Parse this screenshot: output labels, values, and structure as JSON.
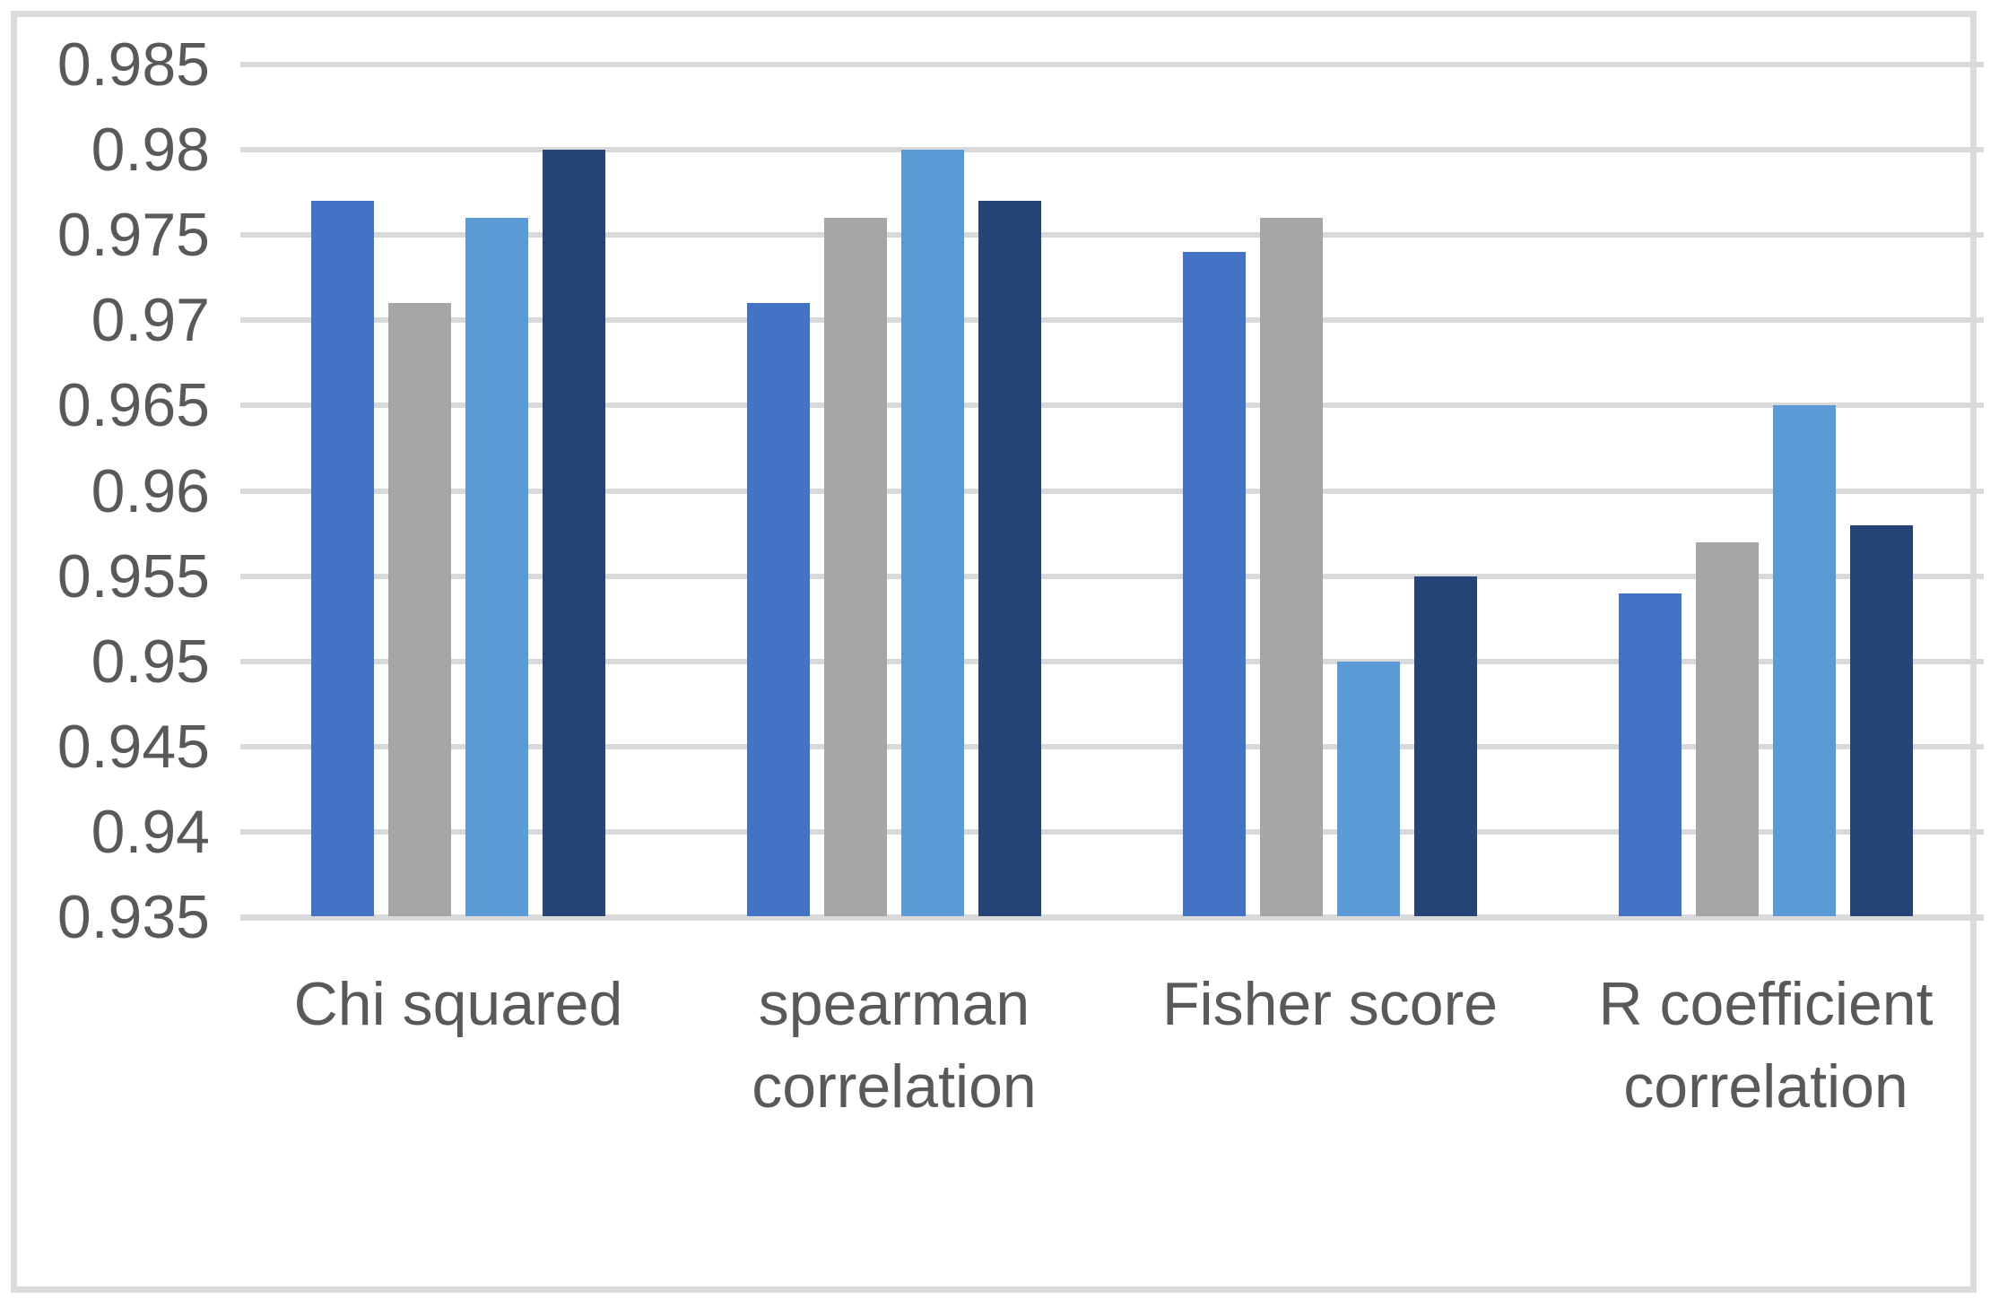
{
  "chart_data": {
    "type": "bar",
    "title": "",
    "xlabel": "",
    "ylabel": "",
    "legend": "none",
    "grid": "horizontal",
    "categories": [
      "Chi squared",
      "spearman correlation",
      "Fisher score",
      "R coefficient correlation"
    ],
    "series": [
      {
        "name": "series-blue",
        "color": "#4472C4",
        "values": [
          0.977,
          0.971,
          0.974,
          0.954
        ]
      },
      {
        "name": "series-gray",
        "color": "#A6A6A6",
        "values": [
          0.971,
          0.976,
          0.976,
          0.957
        ]
      },
      {
        "name": "series-light-blue",
        "color": "#5B9BD5",
        "values": [
          0.976,
          0.98,
          0.95,
          0.965
        ]
      },
      {
        "name": "series-dark-blue",
        "color": "#264478",
        "values": [
          0.98,
          0.977,
          0.955,
          0.958
        ]
      }
    ],
    "y_axis": {
      "min": 0.935,
      "max": 0.985,
      "step": 0.005,
      "ticks": [
        {
          "label": "0.985",
          "value": 0.985
        },
        {
          "label": "0.98",
          "value": 0.98
        },
        {
          "label": "0.975",
          "value": 0.975
        },
        {
          "label": "0.97",
          "value": 0.97
        },
        {
          "label": "0.965",
          "value": 0.965
        },
        {
          "label": "0.96",
          "value": 0.96
        },
        {
          "label": "0.955",
          "value": 0.955
        },
        {
          "label": "0.95",
          "value": 0.95
        },
        {
          "label": "0.945",
          "value": 0.945
        },
        {
          "label": "0.94",
          "value": 0.94
        },
        {
          "label": "0.935",
          "value": 0.935
        }
      ]
    },
    "colors": {
      "gridline": "#D9D9D9",
      "border": "#DBDBDB",
      "axis_text": "#595959",
      "background": "#FFFFFF"
    }
  }
}
